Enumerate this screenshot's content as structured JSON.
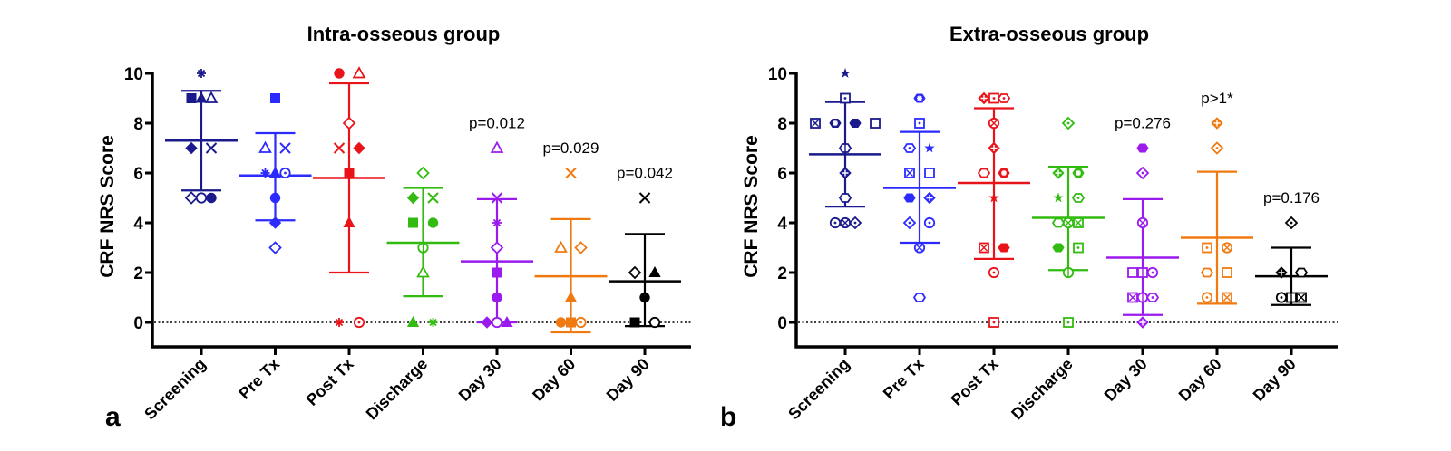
{
  "chart_data": [
    {
      "type": "scatter",
      "panel_label": "a",
      "title": "Intra-osseous group",
      "xlabel": "",
      "ylabel": "CRF NRS Score",
      "ylim": [
        -1,
        10
      ],
      "yticks": [
        0,
        2,
        4,
        6,
        8,
        10
      ],
      "reference_line": 0,
      "categories": [
        "Screening",
        "Pre Tx",
        "Post Tx",
        "Discharge",
        "Day 30",
        "Day 60",
        "Day 90"
      ],
      "series": [
        {
          "name": "Screening",
          "color": "#1a1a8c",
          "mean": 7.3,
          "sd_low": 5.3,
          "sd_high": 9.3,
          "annotation": "",
          "points": [
            {
              "y": 10,
              "marker": "asterisk",
              "off": 0
            },
            {
              "y": 9,
              "marker": "square-filled",
              "off": -1
            },
            {
              "y": 9,
              "marker": "triangle-filled",
              "off": 0
            },
            {
              "y": 9,
              "marker": "triangle-open",
              "off": 1
            },
            {
              "y": 7,
              "marker": "diamond-filled",
              "off": -0.5
            },
            {
              "y": 7,
              "marker": "x",
              "off": 0.5
            },
            {
              "y": 5,
              "marker": "diamond-open",
              "off": -1
            },
            {
              "y": 5,
              "marker": "circle-open",
              "off": 0
            },
            {
              "y": 5,
              "marker": "circle-filled",
              "off": 1
            }
          ]
        },
        {
          "name": "Pre Tx",
          "color": "#2b2bff",
          "mean": 5.9,
          "sd_low": 4.1,
          "sd_high": 7.6,
          "annotation": "",
          "points": [
            {
              "y": 9,
              "marker": "square-filled",
              "off": 0
            },
            {
              "y": 7,
              "marker": "triangle-open",
              "off": -0.5
            },
            {
              "y": 7,
              "marker": "x",
              "off": 0.5
            },
            {
              "y": 6,
              "marker": "asterisk",
              "off": -1
            },
            {
              "y": 6,
              "marker": "triangle-filled",
              "off": 0
            },
            {
              "y": 6,
              "marker": "circle-dot",
              "off": 1
            },
            {
              "y": 5,
              "marker": "circle-filled",
              "off": 0
            },
            {
              "y": 4,
              "marker": "diamond-filled",
              "off": 0
            },
            {
              "y": 3,
              "marker": "diamond-open",
              "off": 0
            }
          ]
        },
        {
          "name": "Post Tx",
          "color": "#e8141a",
          "mean": 5.8,
          "sd_low": 2.0,
          "sd_high": 9.6,
          "annotation": "",
          "points": [
            {
              "y": 10,
              "marker": "circle-filled",
              "off": -0.5
            },
            {
              "y": 10,
              "marker": "triangle-open",
              "off": 0.5
            },
            {
              "y": 8,
              "marker": "diamond-open",
              "off": 0
            },
            {
              "y": 7,
              "marker": "x",
              "off": -0.5
            },
            {
              "y": 7,
              "marker": "diamond-filled",
              "off": 0.5
            },
            {
              "y": 6,
              "marker": "square-filled",
              "off": 0
            },
            {
              "y": 4,
              "marker": "triangle-filled",
              "off": 0
            },
            {
              "y": 0,
              "marker": "asterisk",
              "off": -0.5
            },
            {
              "y": 0,
              "marker": "circle-dot",
              "off": 0.5
            }
          ]
        },
        {
          "name": "Discharge",
          "color": "#33bb11",
          "mean": 3.2,
          "sd_low": 1.05,
          "sd_high": 5.4,
          "annotation": "",
          "points": [
            {
              "y": 6,
              "marker": "diamond-open",
              "off": 0
            },
            {
              "y": 5,
              "marker": "diamond-filled",
              "off": -0.5
            },
            {
              "y": 5,
              "marker": "x",
              "off": 0.5
            },
            {
              "y": 4,
              "marker": "square-filled",
              "off": -0.5
            },
            {
              "y": 4,
              "marker": "circle-filled",
              "off": 0.5
            },
            {
              "y": 3,
              "marker": "circle-bar",
              "off": 0
            },
            {
              "y": 2,
              "marker": "triangle-open",
              "off": 0
            },
            {
              "y": 0,
              "marker": "triangle-filled",
              "off": -0.5
            },
            {
              "y": 0,
              "marker": "asterisk",
              "off": 0.5
            }
          ]
        },
        {
          "name": "Day 30",
          "color": "#9b1aee",
          "mean": 2.45,
          "sd_low": 0.0,
          "sd_high": 4.95,
          "annotation": "p=0.012",
          "points": [
            {
              "y": 7,
              "marker": "triangle-open",
              "off": 0
            },
            {
              "y": 5,
              "marker": "x",
              "off": 0
            },
            {
              "y": 4,
              "marker": "asterisk",
              "off": 0
            },
            {
              "y": 3,
              "marker": "diamond-open",
              "off": 0
            },
            {
              "y": 2,
              "marker": "square-filled",
              "off": 0
            },
            {
              "y": 1,
              "marker": "circle-filled",
              "off": 0
            },
            {
              "y": 0,
              "marker": "diamond-filled",
              "off": -1
            },
            {
              "y": 0,
              "marker": "circle-open",
              "off": 0
            },
            {
              "y": 0,
              "marker": "triangle-filled",
              "off": 1
            }
          ]
        },
        {
          "name": "Day 60",
          "color": "#f07a10",
          "mean": 1.85,
          "sd_low": -0.4,
          "sd_high": 4.15,
          "annotation": "p=0.029",
          "points": [
            {
              "y": 6,
              "marker": "x",
              "off": 0
            },
            {
              "y": 3,
              "marker": "triangle-open",
              "off": -0.5
            },
            {
              "y": 3,
              "marker": "diamond-open",
              "off": 0.5
            },
            {
              "y": 1,
              "marker": "triangle-filled",
              "off": 0
            },
            {
              "y": 0,
              "marker": "circle-filled",
              "off": -1
            },
            {
              "y": 0,
              "marker": "square-filled",
              "off": 0
            },
            {
              "y": 0,
              "marker": "circle-dot",
              "off": 1
            }
          ]
        },
        {
          "name": "Day 90",
          "color": "#000000",
          "mean": 1.65,
          "sd_low": -0.15,
          "sd_high": 3.55,
          "annotation": "p=0.042",
          "points": [
            {
              "y": 5,
              "marker": "x",
              "off": 0
            },
            {
              "y": 2,
              "marker": "diamond-open",
              "off": -0.5
            },
            {
              "y": 2,
              "marker": "triangle-filled",
              "off": 0.5
            },
            {
              "y": 1,
              "marker": "circle-filled",
              "off": 0
            },
            {
              "y": 0,
              "marker": "square-filled",
              "off": -0.5
            },
            {
              "y": 0,
              "marker": "circle-open",
              "off": 0.5
            }
          ]
        }
      ]
    },
    {
      "type": "scatter",
      "panel_label": "b",
      "title": "Extra-osseous group",
      "xlabel": "",
      "ylabel": "CRF NRS Score",
      "ylim": [
        -1,
        10
      ],
      "yticks": [
        0,
        2,
        4,
        6,
        8,
        10
      ],
      "reference_line": 0,
      "categories": [
        "Screening",
        "Pre Tx",
        "Post Tx",
        "Discharge",
        "Day 30",
        "Day 60",
        "Day 90"
      ],
      "series": [
        {
          "name": "Screening",
          "color": "#1a1a8c",
          "mean": 6.75,
          "sd_low": 4.65,
          "sd_high": 8.85,
          "annotation": "",
          "points": [
            {
              "y": 10,
              "marker": "star",
              "off": 0
            },
            {
              "y": 9,
              "marker": "square-dot",
              "off": 0
            },
            {
              "y": 8,
              "marker": "square-x",
              "off": -1.5
            },
            {
              "y": 8,
              "marker": "hex-plus-filled",
              "off": -0.5
            },
            {
              "y": 8,
              "marker": "hex-filled",
              "off": 0.5
            },
            {
              "y": 8,
              "marker": "square-open",
              "off": 1.5
            },
            {
              "y": 7,
              "marker": "hex-bar",
              "off": 0
            },
            {
              "y": 6,
              "marker": "diamond-plus",
              "off": 0
            },
            {
              "y": 5,
              "marker": "hex-open",
              "off": 0
            },
            {
              "y": 4,
              "marker": "circle-dot",
              "off": -1
            },
            {
              "y": 4,
              "marker": "circle-x",
              "off": 0
            },
            {
              "y": 4,
              "marker": "diamond-dot",
              "off": 1
            }
          ]
        },
        {
          "name": "Pre Tx",
          "color": "#2b2bff",
          "mean": 5.4,
          "sd_low": 3.2,
          "sd_high": 7.65,
          "annotation": "",
          "points": [
            {
              "y": 9,
              "marker": "hex-plus-filled",
              "off": 0
            },
            {
              "y": 8,
              "marker": "square-dot",
              "off": 0
            },
            {
              "y": 7,
              "marker": "hex-dot",
              "off": -0.5
            },
            {
              "y": 7,
              "marker": "star",
              "off": 0.5
            },
            {
              "y": 6,
              "marker": "square-x",
              "off": -0.5
            },
            {
              "y": 6,
              "marker": "square-open",
              "off": 0.5
            },
            {
              "y": 5,
              "marker": "hex-filled",
              "off": -0.5
            },
            {
              "y": 5,
              "marker": "diamond-plus",
              "off": 0.5
            },
            {
              "y": 4,
              "marker": "diamond-dot",
              "off": -0.5
            },
            {
              "y": 4,
              "marker": "circle-dot",
              "off": 0.5
            },
            {
              "y": 3,
              "marker": "circle-x",
              "off": 0
            },
            {
              "y": 1,
              "marker": "hex-open",
              "off": 0
            }
          ]
        },
        {
          "name": "Post Tx",
          "color": "#e8141a",
          "mean": 5.6,
          "sd_low": 2.55,
          "sd_high": 8.6,
          "annotation": "",
          "points": [
            {
              "y": 9,
              "marker": "diamond-plus",
              "off": -1
            },
            {
              "y": 9,
              "marker": "square-dot",
              "off": 0
            },
            {
              "y": 9,
              "marker": "hex-dot",
              "off": 1
            },
            {
              "y": 8,
              "marker": "circle-x",
              "off": 0
            },
            {
              "y": 7,
              "marker": "diamond-plus",
              "off": 0
            },
            {
              "y": 6,
              "marker": "hex-open",
              "off": -0.5
            },
            {
              "y": 6,
              "marker": "hex-plus-filled",
              "off": 0.5
            },
            {
              "y": 5,
              "marker": "star",
              "off": 0
            },
            {
              "y": 3,
              "marker": "square-x",
              "off": -0.5
            },
            {
              "y": 3,
              "marker": "hex-filled",
              "off": 0.5
            },
            {
              "y": 2,
              "marker": "circle-dot",
              "off": 0
            },
            {
              "y": 0,
              "marker": "square-dot",
              "off": 0
            }
          ]
        },
        {
          "name": "Discharge",
          "color": "#33bb11",
          "mean": 4.2,
          "sd_low": 2.1,
          "sd_high": 6.25,
          "annotation": "",
          "points": [
            {
              "y": 8,
              "marker": "diamond-dot",
              "off": 0
            },
            {
              "y": 6,
              "marker": "diamond-plus",
              "off": -0.5
            },
            {
              "y": 6,
              "marker": "hex-plus-filled",
              "off": 0.5
            },
            {
              "y": 5,
              "marker": "star",
              "off": -0.5
            },
            {
              "y": 5,
              "marker": "hex-dot",
              "off": 0.5
            },
            {
              "y": 4,
              "marker": "hex-open",
              "off": -1
            },
            {
              "y": 4,
              "marker": "circle-x",
              "off": 0
            },
            {
              "y": 4,
              "marker": "square-x",
              "off": 1
            },
            {
              "y": 3,
              "marker": "hex-filled",
              "off": -0.5
            },
            {
              "y": 3,
              "marker": "square-dot",
              "off": 0.5
            },
            {
              "y": 2,
              "marker": "circle-bar",
              "off": 0
            },
            {
              "y": 0,
              "marker": "square-dot",
              "off": 0
            }
          ]
        },
        {
          "name": "Day 30",
          "color": "#9b1aee",
          "mean": 2.6,
          "sd_low": 0.3,
          "sd_high": 4.95,
          "annotation": "p=0.276",
          "points": [
            {
              "y": 7,
              "marker": "hex-filled",
              "off": 0
            },
            {
              "y": 6,
              "marker": "diamond-dot",
              "off": 0
            },
            {
              "y": 4,
              "marker": "circle-x",
              "off": 0
            },
            {
              "y": 2,
              "marker": "square-open",
              "off": -1
            },
            {
              "y": 2,
              "marker": "square-bar",
              "off": 0
            },
            {
              "y": 2,
              "marker": "circle-dot",
              "off": 1
            },
            {
              "y": 1,
              "marker": "square-x",
              "off": -1
            },
            {
              "y": 1,
              "marker": "circle-bar",
              "off": 0
            },
            {
              "y": 1,
              "marker": "hex-dot",
              "off": 1
            },
            {
              "y": 0,
              "marker": "diamond-plus",
              "off": 0
            }
          ]
        },
        {
          "name": "Day 60",
          "color": "#f07a10",
          "mean": 3.4,
          "sd_low": 0.75,
          "sd_high": 6.05,
          "annotation": "p>1*",
          "points": [
            {
              "y": 8,
              "marker": "diamond-plus",
              "off": 0
            },
            {
              "y": 7,
              "marker": "diamond-dot",
              "off": 0
            },
            {
              "y": 3,
              "marker": "square-dot",
              "off": -0.5
            },
            {
              "y": 3,
              "marker": "circle-x",
              "off": 0.5
            },
            {
              "y": 2,
              "marker": "hex-open",
              "off": -0.5
            },
            {
              "y": 2,
              "marker": "square-open",
              "off": 0.5
            },
            {
              "y": 1,
              "marker": "circle-dot",
              "off": -0.5
            },
            {
              "y": 1,
              "marker": "square-x",
              "off": 0.5
            }
          ]
        },
        {
          "name": "Day 90",
          "color": "#000000",
          "mean": 1.85,
          "sd_low": 0.7,
          "sd_high": 3.0,
          "annotation": "p=0.176",
          "points": [
            {
              "y": 4,
              "marker": "diamond-dot",
              "off": 0
            },
            {
              "y": 2,
              "marker": "diamond-plus",
              "off": -0.5
            },
            {
              "y": 2,
              "marker": "hex-open",
              "off": 0.5
            },
            {
              "y": 1,
              "marker": "circle-dot",
              "off": -1
            },
            {
              "y": 1,
              "marker": "square-bar",
              "off": 0
            },
            {
              "y": 1,
              "marker": "square-x",
              "off": 1
            }
          ]
        }
      ]
    }
  ]
}
